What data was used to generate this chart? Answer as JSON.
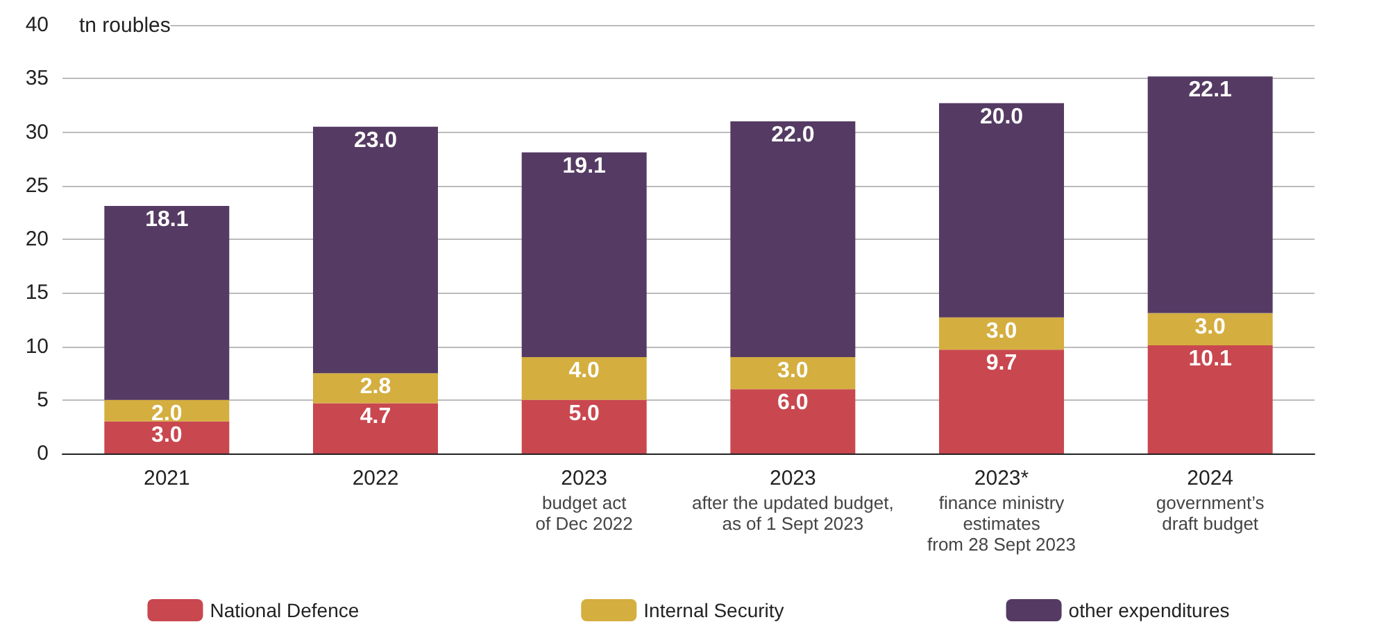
{
  "chart_data": {
    "type": "bar",
    "stacked": true,
    "ylabel": "tn roubles",
    "categories": [
      "2021",
      "2022",
      "2023\nbudget act\nof Dec 2022",
      "2023\nafter the updated budget,\nas of 1 Sept 2023",
      "2023*\nfinance ministry\nestimates\nfrom 28 Sept 2023",
      "2024\ngovernment’s\ndraft budget"
    ],
    "series": [
      {
        "name": "National Defence",
        "color": "#c9474f",
        "values": [
          3.0,
          4.7,
          5.0,
          6.0,
          9.7,
          10.1
        ],
        "value_labels": [
          "3.0",
          "4.7",
          "5.0",
          "6.0",
          "9.7",
          "10.1"
        ]
      },
      {
        "name": "Internal Security",
        "color": "#d4ae3f",
        "values": [
          2.0,
          2.8,
          4.0,
          3.0,
          3.0,
          3.0
        ],
        "value_labels": [
          "2.0",
          "2.8",
          "4.0",
          "3.0",
          "3.0",
          "3.0"
        ]
      },
      {
        "name": "other expenditures",
        "color": "#553b63",
        "values": [
          18.1,
          23.0,
          19.1,
          22.0,
          20.0,
          22.1
        ],
        "value_labels": [
          "18.1",
          "23.0",
          "19.1",
          "22.0",
          "20.0",
          "22.1"
        ]
      }
    ],
    "ylim": [
      0,
      40
    ],
    "yticks": [
      0,
      5,
      10,
      15,
      20,
      25,
      30,
      35,
      40
    ],
    "grid": "y",
    "legend": "bottom"
  }
}
